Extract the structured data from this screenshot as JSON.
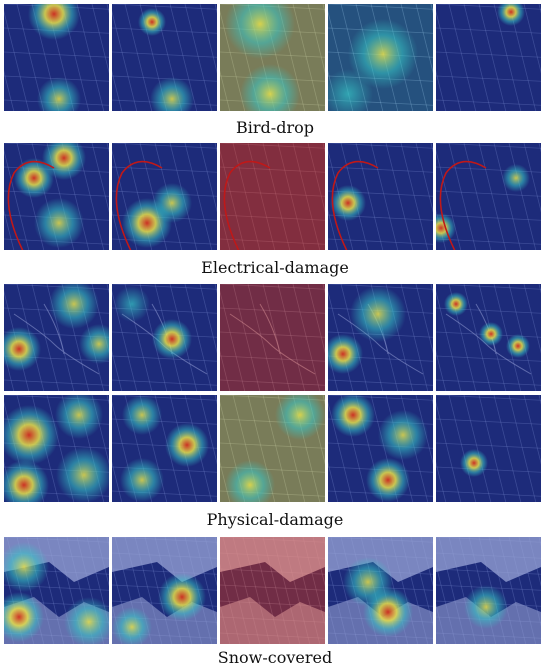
{
  "captions": {
    "bird_drop": "Bird-drop",
    "electrical_damage": "Electrical-damage",
    "physical_damage": "Physical-damage",
    "snow_covered": "Snow-covered"
  },
  "colors": {
    "heat_low": "#1b2fa0",
    "heat_mid": "#36c7c7",
    "heat_warm": "#e7e04a",
    "heat_high": "#d4311f",
    "panel_dark": "#1f2a66",
    "grid_line": "#a9b6e6",
    "annotation_red": "#c01818"
  }
}
